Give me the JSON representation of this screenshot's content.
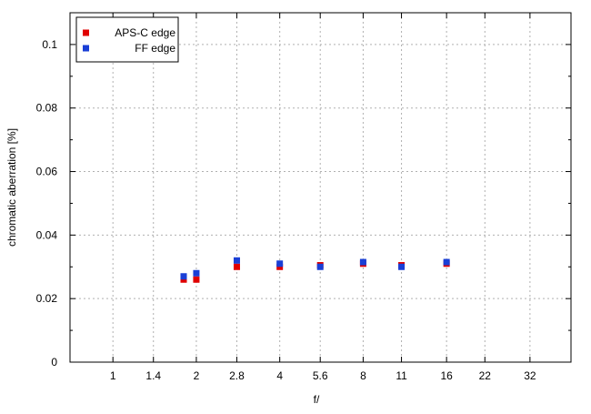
{
  "chart_data": {
    "type": "scatter",
    "xscale": "log2",
    "x_ticks": [
      {
        "value": 1,
        "label": "1"
      },
      {
        "value": 1.4,
        "label": "1.4"
      },
      {
        "value": 2,
        "label": "2"
      },
      {
        "value": 2.8,
        "label": "2.8"
      },
      {
        "value": 4,
        "label": "4"
      },
      {
        "value": 5.6,
        "label": "5.6"
      },
      {
        "value": 8,
        "label": "8"
      },
      {
        "value": 11,
        "label": "11"
      },
      {
        "value": 16,
        "label": "16"
      },
      {
        "value": 22,
        "label": "22"
      },
      {
        "value": 32,
        "label": "32"
      }
    ],
    "y_ticks": [
      {
        "value": 0,
        "label": "0"
      },
      {
        "value": 0.02,
        "label": "0.02"
      },
      {
        "value": 0.04,
        "label": "0.04"
      },
      {
        "value": 0.06,
        "label": "0.06"
      },
      {
        "value": 0.08,
        "label": "0.08"
      },
      {
        "value": 0.1,
        "label": "0.1"
      }
    ],
    "xlim": [
      0.7,
      45
    ],
    "ylim": [
      0,
      0.11
    ],
    "xlabel": "f/",
    "ylabel": "chromatic aberration [%]",
    "grid": true,
    "legend_position": "top-left",
    "series": [
      {
        "name": "APS-C edge",
        "color": "#e00000",
        "x": [
          1.8,
          2,
          2.8,
          4,
          5.6,
          8,
          11,
          16
        ],
        "y": [
          0.026,
          0.026,
          0.03,
          0.03,
          0.0305,
          0.031,
          0.0305,
          0.031
        ]
      },
      {
        "name": "FF edge",
        "color": "#1a3fd6",
        "x": [
          1.8,
          2,
          2.8,
          4,
          5.6,
          8,
          11,
          16
        ],
        "y": [
          0.027,
          0.028,
          0.032,
          0.031,
          0.03,
          0.0315,
          0.03,
          0.0315
        ]
      }
    ]
  }
}
